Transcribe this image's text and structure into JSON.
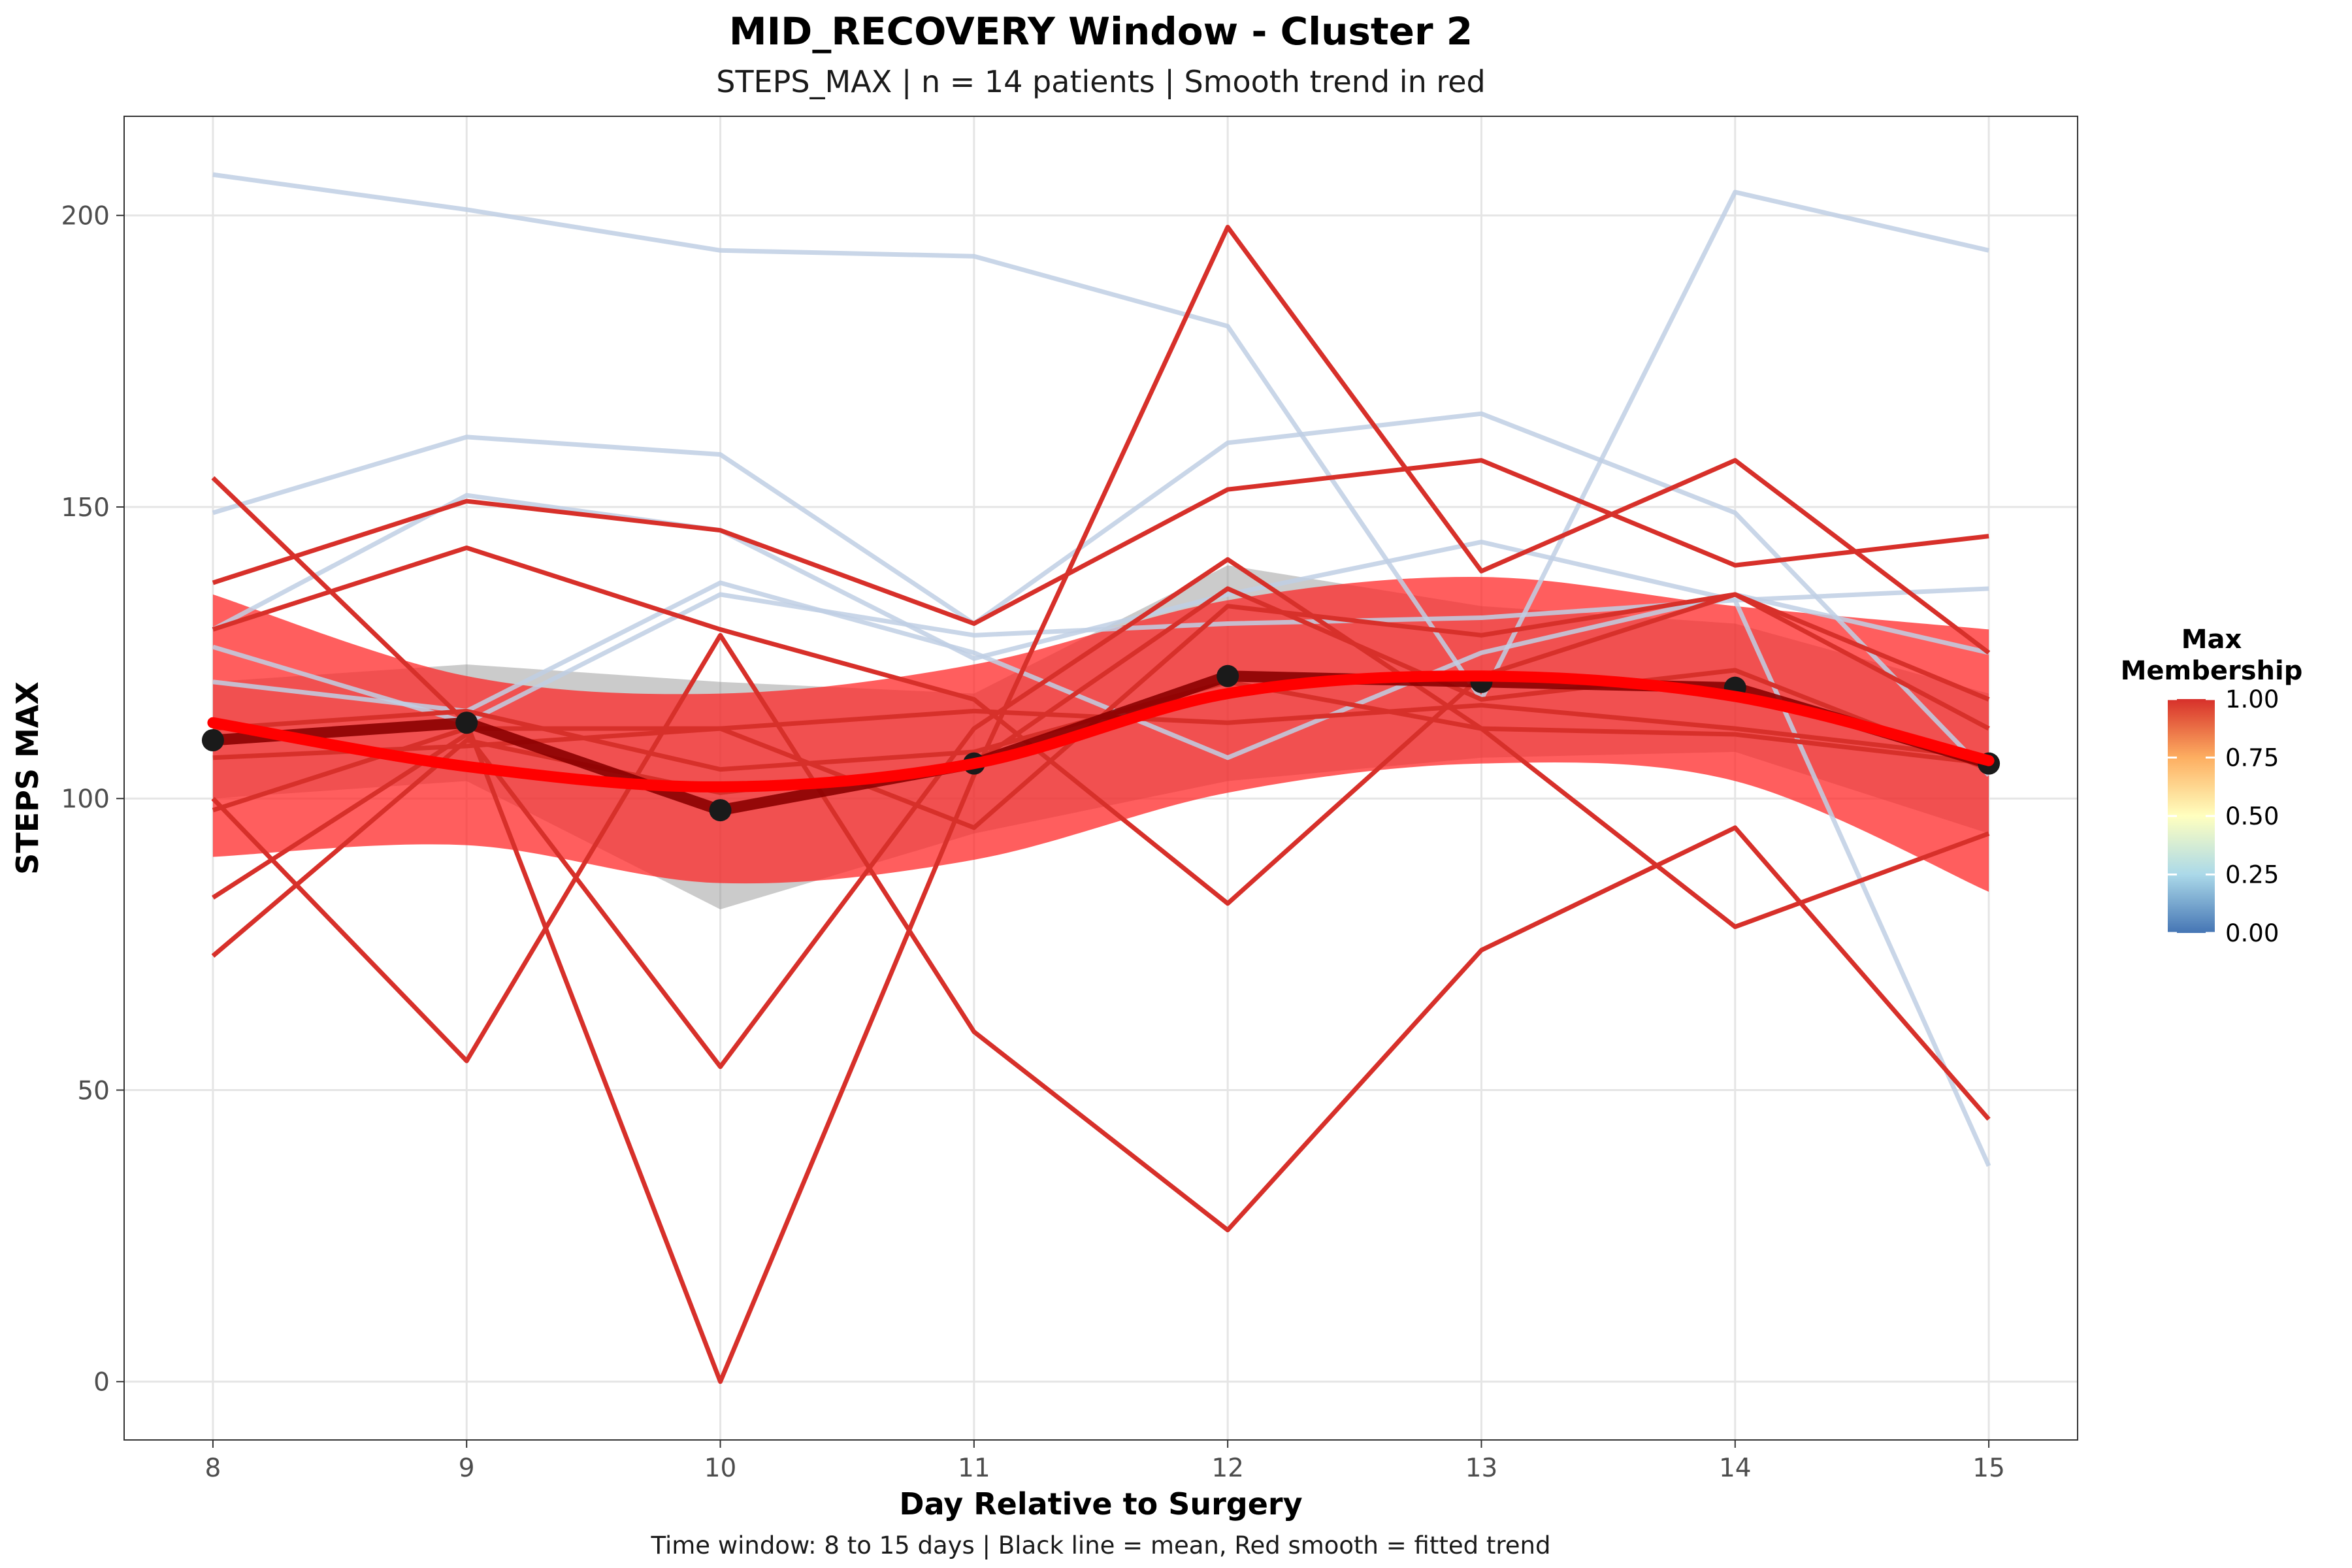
{
  "chart_data": {
    "type": "line",
    "title": "MID_RECOVERY Window - Cluster 2",
    "subtitle": "STEPS_MAX | n = 14 patients | Smooth trend in red",
    "caption": "Time window: 8 to 15 days | Black line = mean, Red smooth = fitted trend",
    "xlabel": "Day Relative to Surgery",
    "ylabel": "STEPS MAX",
    "xlim": [
      7.65,
      15.35
    ],
    "ylim": [
      -10,
      217
    ],
    "x_ticks": [
      8,
      9,
      10,
      11,
      12,
      13,
      14,
      15
    ],
    "y_ticks": [
      0,
      50,
      100,
      150,
      200
    ],
    "grid": true,
    "x": [
      8,
      9,
      10,
      11,
      12,
      13,
      14,
      15
    ],
    "patients": [
      {
        "membership": 0.0,
        "values": [
          207,
          201,
          194,
          193,
          181,
          117,
          204,
          194
        ]
      },
      {
        "membership": 0.0,
        "values": [
          149,
          162,
          159,
          130,
          161,
          166,
          149,
          104
        ]
      },
      {
        "membership": 0.0,
        "values": [
          129,
          152,
          146,
          124,
          135,
          144,
          134,
          37
        ]
      },
      {
        "membership": 0.0,
        "values": [
          120,
          115,
          137,
          125,
          107,
          125,
          135,
          125
        ]
      },
      {
        "membership": 0.0,
        "values": [
          126,
          113,
          135,
          128,
          130,
          131,
          134,
          136
        ]
      },
      {
        "membership": 1.0,
        "values": [
          155,
          113,
          0,
          104,
          198,
          139,
          158,
          125
        ]
      },
      {
        "membership": 1.0,
        "values": [
          137,
          151,
          146,
          130,
          153,
          158,
          140,
          145
        ]
      },
      {
        "membership": 1.0,
        "values": [
          129,
          143,
          129,
          117,
          82,
          121,
          135,
          112
        ]
      },
      {
        "membership": 1.0,
        "values": [
          100,
          55,
          128,
          60,
          26,
          74,
          95,
          45
        ]
      },
      {
        "membership": 1.0,
        "values": [
          83,
          111,
          54,
          112,
          141,
          112,
          78,
          94
        ]
      },
      {
        "membership": 1.0,
        "values": [
          73,
          110,
          101,
          106,
          136,
          117,
          122,
          105
        ]
      },
      {
        "membership": 1.0,
        "values": [
          98,
          112,
          112,
          95,
          133,
          128,
          135,
          117
        ]
      },
      {
        "membership": 1.0,
        "values": [
          107,
          109,
          112,
          115,
          113,
          116,
          112,
          107
        ]
      },
      {
        "membership": 1.0,
        "values": [
          112,
          115,
          105,
          108,
          120,
          112,
          111,
          106
        ]
      }
    ],
    "mean": {
      "values": [
        110,
        113,
        98,
        106,
        121,
        120,
        119,
        106
      ],
      "ci_upper": [
        120,
        123,
        120,
        118,
        140,
        133,
        130,
        118
      ],
      "ci_lower": [
        100,
        103,
        81,
        94,
        103,
        107,
        108,
        94
      ]
    },
    "smooth": {
      "values": [
        113,
        105.5,
        102,
        106,
        118,
        121,
        117.5,
        106.5
      ],
      "ci_upper": [
        135,
        121,
        118,
        123,
        134,
        138,
        133,
        129
      ],
      "ci_lower": [
        90,
        92,
        85.5,
        89.5,
        101,
        106,
        103,
        84
      ]
    },
    "legend": {
      "title": "Max\nMembership",
      "labels": [
        "1.00",
        "0.75",
        "0.50",
        "0.25",
        "0.00"
      ],
      "colors": [
        "#D7302A",
        "#FDAE61",
        "#FFFFBF",
        "#ABD9E9",
        "#4575B4"
      ],
      "placement": "right"
    },
    "colors": {
      "low": "#BFCFE4",
      "high": "#D7302A",
      "mean": "#8B0000",
      "smooth": "#FF0000",
      "smooth_ribbon": "#FF2020"
    }
  }
}
